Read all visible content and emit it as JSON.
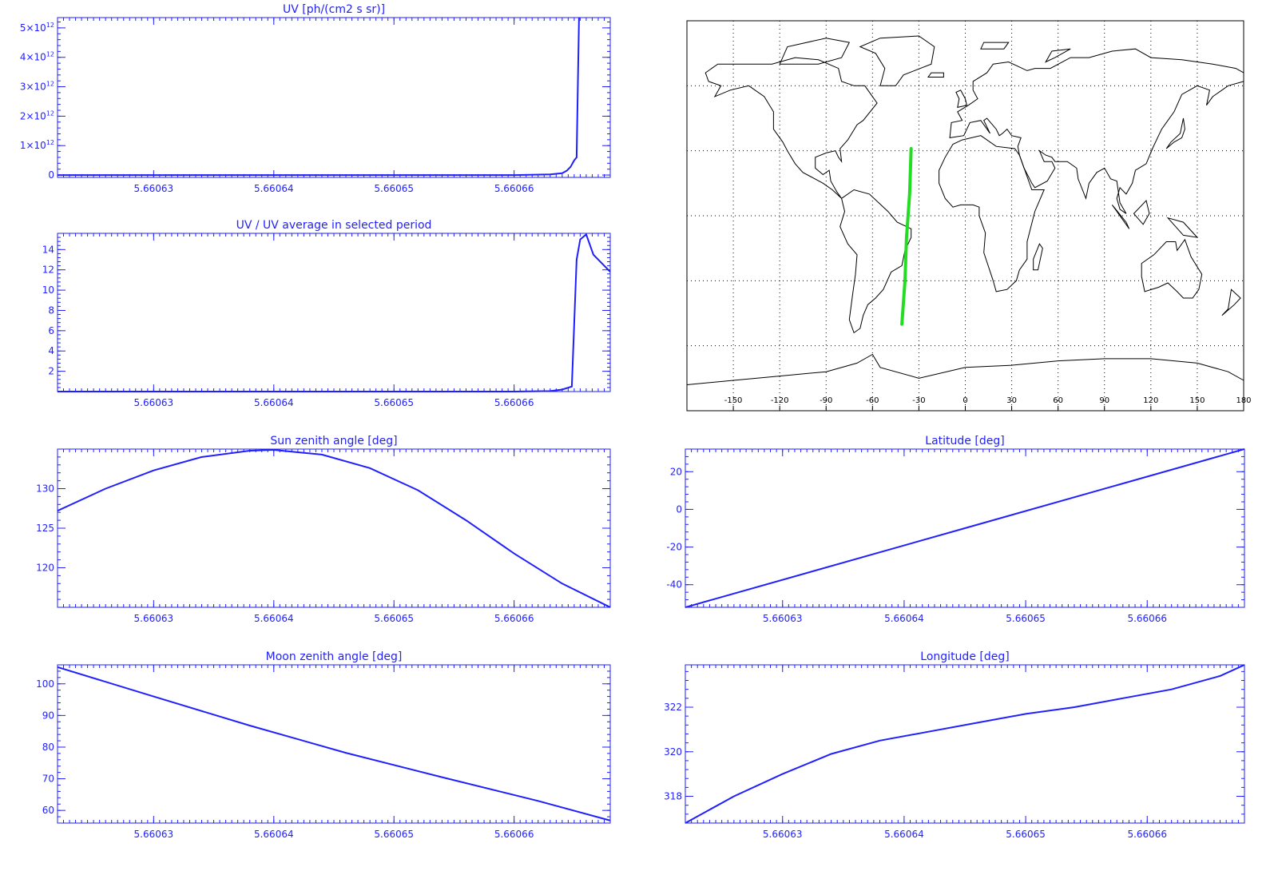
{
  "colors": {
    "axis": "#1f1fff",
    "line": "#1f1fff",
    "track": "#22dd22",
    "coast": "#000000",
    "grid": "#000000"
  },
  "chart_data": [
    {
      "id": "uv",
      "type": "line",
      "title": "UV [ph/(cm2 s sr)]",
      "xlim": [
        5.660622,
        5.660668
      ],
      "ylim": [
        -80000000000.0,
        5350000000000.0
      ],
      "x_ticks": [
        {
          "v": 5.66063,
          "label": "5.66063"
        },
        {
          "v": 5.66064,
          "label": "5.66064"
        },
        {
          "v": 5.66065,
          "label": "5.66065"
        },
        {
          "v": 5.66066,
          "label": "5.66066"
        }
      ],
      "y_ticks": [
        {
          "v": 0,
          "label": "0",
          "sup": ""
        },
        {
          "v": 1000000000000.0,
          "label": "1×10",
          "sup": "12"
        },
        {
          "v": 2000000000000.0,
          "label": "2×10",
          "sup": "12"
        },
        {
          "v": 3000000000000.0,
          "label": "3×10",
          "sup": "12"
        },
        {
          "v": 4000000000000.0,
          "label": "4×10",
          "sup": "12"
        },
        {
          "v": 5000000000000.0,
          "label": "5×10",
          "sup": "12"
        }
      ],
      "x": [
        5.660622,
        5.66064,
        5.66066,
        5.660663,
        5.660664,
        5.6606644,
        5.6606647,
        5.660665,
        5.6606652,
        5.6606653,
        5.6606654
      ],
      "y": [
        0,
        0,
        0,
        20000000000.0,
        60000000000.0,
        150000000000.0,
        280000000000.0,
        500000000000.0,
        600000000000.0,
        3000000000000.0,
        5350000000000.0
      ]
    },
    {
      "id": "uvratio",
      "type": "line",
      "title": "UV / UV average in selected period",
      "xlim": [
        5.660622,
        5.660668
      ],
      "ylim": [
        0,
        15.6
      ],
      "x_ticks": [
        {
          "v": 5.66063,
          "label": "5.66063"
        },
        {
          "v": 5.66064,
          "label": "5.66064"
        },
        {
          "v": 5.66065,
          "label": "5.66065"
        },
        {
          "v": 5.66066,
          "label": "5.66066"
        }
      ],
      "y_ticks": [
        {
          "v": 2,
          "label": "2"
        },
        {
          "v": 4,
          "label": "4"
        },
        {
          "v": 6,
          "label": "6"
        },
        {
          "v": 8,
          "label": "8"
        },
        {
          "v": 10,
          "label": "10"
        },
        {
          "v": 12,
          "label": "12"
        },
        {
          "v": 14,
          "label": "14"
        }
      ],
      "x": [
        5.660622,
        5.66064,
        5.66066,
        5.660663,
        5.660664,
        5.6606648,
        5.6606652,
        5.6606655,
        5.660666,
        5.6606666,
        5.660668
      ],
      "y": [
        0,
        0,
        0,
        0.05,
        0.2,
        0.5,
        13.0,
        15.0,
        15.5,
        13.5,
        11.8
      ]
    },
    {
      "id": "sza",
      "type": "line",
      "title": "Sun zenith angle [deg]",
      "xlim": [
        5.660622,
        5.660668
      ],
      "ylim": [
        115,
        135
      ],
      "x_ticks": [
        {
          "v": 5.66063,
          "label": "5.66063"
        },
        {
          "v": 5.66064,
          "label": "5.66064"
        },
        {
          "v": 5.66065,
          "label": "5.66065"
        },
        {
          "v": 5.66066,
          "label": "5.66066"
        }
      ],
      "y_ticks": [
        {
          "v": 120,
          "label": "120"
        },
        {
          "v": 125,
          "label": "125"
        },
        {
          "v": 130,
          "label": "130"
        }
      ],
      "x": [
        5.660622,
        5.660626,
        5.66063,
        5.660634,
        5.660638,
        5.66064,
        5.660644,
        5.660648,
        5.660652,
        5.660656,
        5.66066,
        5.660664,
        5.660668
      ],
      "y": [
        127.2,
        130.0,
        132.3,
        134.0,
        134.8,
        134.9,
        134.3,
        132.6,
        129.8,
        126.0,
        121.8,
        118.0,
        115.0
      ]
    },
    {
      "id": "lat",
      "type": "line",
      "title": "Latitude [deg]",
      "xlim": [
        5.660622,
        5.660668
      ],
      "ylim": [
        -52,
        32
      ],
      "x_ticks": [
        {
          "v": 5.66063,
          "label": "5.66063"
        },
        {
          "v": 5.66064,
          "label": "5.66064"
        },
        {
          "v": 5.66065,
          "label": "5.66065"
        },
        {
          "v": 5.66066,
          "label": "5.66066"
        }
      ],
      "y_ticks": [
        {
          "v": -40,
          "label": "-40"
        },
        {
          "v": -20,
          "label": "-20"
        },
        {
          "v": 0,
          "label": "0"
        },
        {
          "v": 20,
          "label": "20"
        }
      ],
      "x": [
        5.660622,
        5.660645,
        5.660668
      ],
      "y": [
        -52,
        -10,
        32
      ]
    },
    {
      "id": "mza",
      "type": "line",
      "title": "Moon zenith angle [deg]",
      "xlim": [
        5.660622,
        5.660668
      ],
      "ylim": [
        56,
        106
      ],
      "x_ticks": [
        {
          "v": 5.66063,
          "label": "5.66063"
        },
        {
          "v": 5.66064,
          "label": "5.66064"
        },
        {
          "v": 5.66065,
          "label": "5.66065"
        },
        {
          "v": 5.66066,
          "label": "5.66066"
        }
      ],
      "y_ticks": [
        {
          "v": 60,
          "label": "60"
        },
        {
          "v": 70,
          "label": "70"
        },
        {
          "v": 80,
          "label": "80"
        },
        {
          "v": 90,
          "label": "90"
        },
        {
          "v": 100,
          "label": "100"
        }
      ],
      "x": [
        5.660622,
        5.66063,
        5.660638,
        5.660646,
        5.660654,
        5.660662,
        5.660668
      ],
      "y": [
        105.3,
        96.0,
        86.8,
        78.2,
        70.5,
        63.0,
        56.8
      ]
    },
    {
      "id": "lon",
      "type": "line",
      "title": "Longitude [deg]",
      "xlim": [
        5.660622,
        5.660668
      ],
      "ylim": [
        316.8,
        323.9
      ],
      "x_ticks": [
        {
          "v": 5.66063,
          "label": "5.66063"
        },
        {
          "v": 5.66064,
          "label": "5.66064"
        },
        {
          "v": 5.66065,
          "label": "5.66065"
        },
        {
          "v": 5.66066,
          "label": "5.66066"
        }
      ],
      "y_ticks": [
        {
          "v": 318,
          "label": "318"
        },
        {
          "v": 320,
          "label": "320"
        },
        {
          "v": 322,
          "label": "322"
        }
      ],
      "x": [
        5.660622,
        5.660626,
        5.66063,
        5.660634,
        5.660638,
        5.660642,
        5.660646,
        5.66065,
        5.660654,
        5.660658,
        5.660662,
        5.660666,
        5.660668
      ],
      "y": [
        316.8,
        318.0,
        319.0,
        319.9,
        320.5,
        320.9,
        321.3,
        321.7,
        322.0,
        322.4,
        322.8,
        323.4,
        323.9
      ]
    }
  ],
  "map": {
    "type": "map",
    "lon_ticks": [
      "-150",
      "-120",
      "-90",
      "-60",
      "-30",
      "0",
      "30",
      "60",
      "90",
      "120",
      "150",
      "180"
    ],
    "lon_values": [
      -150,
      -120,
      -90,
      -60,
      -30,
      0,
      30,
      60,
      90,
      120,
      150,
      180
    ],
    "lat_grid": [
      -60,
      -30,
      0,
      30,
      60
    ],
    "lon_range": [
      -180,
      180
    ],
    "lat_range": [
      -90,
      90
    ],
    "track": [
      [
        -41,
        -50
      ],
      [
        -39,
        -30
      ],
      [
        -38,
        -10
      ],
      [
        -36,
        10
      ],
      [
        -35,
        31
      ]
    ]
  }
}
